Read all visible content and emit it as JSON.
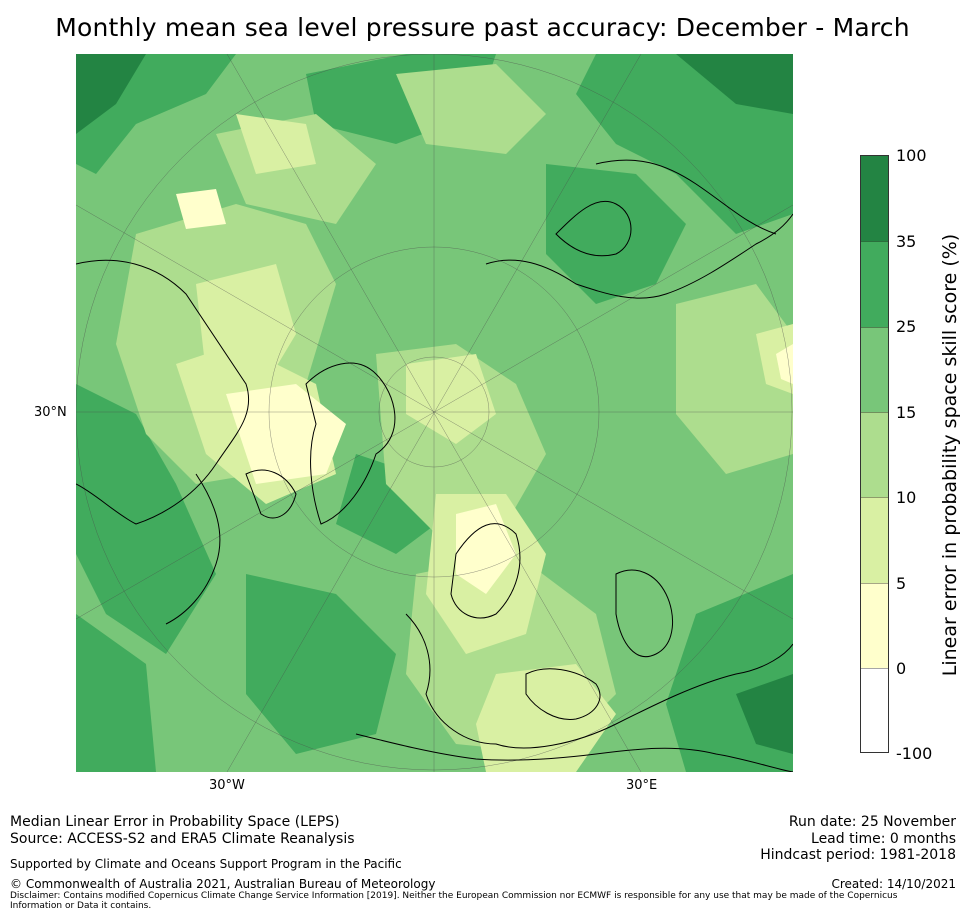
{
  "title": "Monthly mean sea level pressure past accuracy: December - March",
  "map": {
    "projection": "north-polar-stereographic",
    "lat_label": "30°N",
    "lon_labels": [
      "30°W",
      "30°E"
    ]
  },
  "colorbar": {
    "title": "Linear error in probability space skill score (%)",
    "ticks": [
      "100",
      "35",
      "25",
      "15",
      "10",
      "5",
      "0",
      "-100"
    ],
    "colors": [
      "#238443",
      "#41ab5d",
      "#78c679",
      "#addd8e",
      "#d9f0a3",
      "#ffffcc",
      "#ffffff"
    ]
  },
  "footer": {
    "line1": "Median Linear Error in Probability Space (LEPS)",
    "line2": "Source: ACCESS-S2 and ERA5 Climate Reanalysis",
    "support": "Supported by Climate and Oceans Support Program in the Pacific",
    "copyright": "© Commonwealth of Australia 2021, Australian Bureau of Meteorology",
    "disclaimer": "Disclaimer: Contains modified Copernicus Climate Change Service Information [2019]. Neither the European Commission nor ECMWF is responsible for any use that may be made of the Copernicus Information or Data it contains.",
    "run_date": "Run date: 25 November",
    "lead_time": "Lead time: 0 months",
    "hindcast": "Hindcast period: 1981-2018",
    "created": "Created: 14/10/2021"
  }
}
